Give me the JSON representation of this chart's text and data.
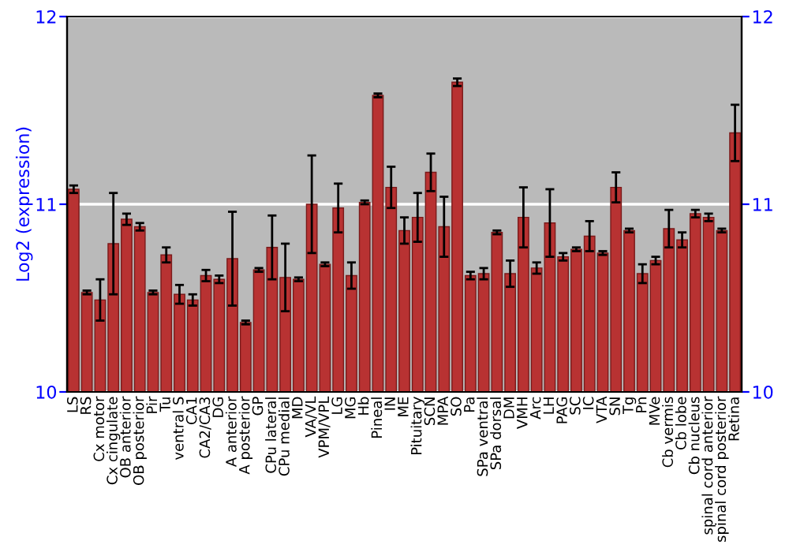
{
  "chart_data": {
    "type": "bar",
    "ylabel": "Log2 (expression)",
    "categories": [
      "LS",
      "RS",
      "Cx motor",
      "Cx cingulate",
      "OB anterior",
      "OB posterior",
      "Pir",
      "Tu",
      "ventral S",
      "CA1",
      "CA2/CA3",
      "DG",
      "A anterior",
      "A posterior",
      "GP",
      "CPu lateral",
      "CPu medial",
      "MD",
      "VA/VL",
      "VPM/VPL",
      "LG",
      "MG",
      "Hb",
      "Pineal",
      "IN",
      "ME",
      "Pituitary",
      "SCN",
      "MPA",
      "SO",
      "Pa",
      "SPa ventral",
      "SPa dorsal",
      "DM",
      "VMH",
      "Arc",
      "LH",
      "PAG",
      "SC",
      "IC",
      "VTA",
      "SN",
      "Tg",
      "Pn",
      "MVe",
      "Cb vermis",
      "Cb lobe",
      "Cb nucleus",
      "spinal cord anterior",
      "spinal cord posterior",
      "Retina"
    ],
    "values": [
      11.08,
      10.53,
      10.49,
      10.79,
      10.92,
      10.88,
      10.53,
      10.73,
      10.52,
      10.49,
      10.62,
      10.6,
      10.71,
      10.37,
      10.65,
      10.77,
      10.61,
      10.6,
      11.0,
      10.68,
      10.98,
      10.62,
      11.01,
      11.58,
      11.09,
      10.86,
      10.93,
      11.17,
      10.88,
      11.65,
      10.62,
      10.63,
      10.85,
      10.63,
      10.93,
      10.66,
      10.9,
      10.72,
      10.76,
      10.83,
      10.74,
      11.09,
      10.86,
      10.63,
      10.7,
      10.87,
      10.81,
      10.95,
      10.93,
      10.86,
      11.38
    ],
    "errors": [
      0.02,
      0.01,
      0.11,
      0.27,
      0.03,
      0.02,
      0.01,
      0.04,
      0.05,
      0.03,
      0.03,
      0.02,
      0.25,
      0.01,
      0.01,
      0.17,
      0.18,
      0.01,
      0.26,
      0.01,
      0.13,
      0.07,
      0.01,
      0.01,
      0.11,
      0.07,
      0.13,
      0.1,
      0.16,
      0.02,
      0.02,
      0.03,
      0.01,
      0.07,
      0.16,
      0.03,
      0.18,
      0.02,
      0.01,
      0.08,
      0.01,
      0.08,
      0.01,
      0.05,
      0.02,
      0.1,
      0.04,
      0.02,
      0.02,
      0.01,
      0.15
    ],
    "color": "#b83232",
    "ylim": [
      10,
      12
    ],
    "yticks": [
      10,
      11,
      12
    ],
    "y2lim": [
      10,
      12
    ],
    "y2ticks": [
      10,
      11,
      12
    ],
    "grid": "y",
    "legend": false
  }
}
